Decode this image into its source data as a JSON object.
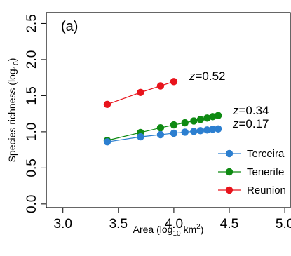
{
  "chart_data": {
    "type": "scatter",
    "panel_label": "(a)",
    "xlabel": {
      "pre": "Area (log",
      "sub": "10",
      "post": " km",
      "sup": "2",
      "end": ")"
    },
    "ylabel": {
      "pre": "Species richness (log",
      "sub": "10",
      "end": ")"
    },
    "xlim": [
      2.85,
      5.05
    ],
    "ylim": [
      -0.05,
      2.65
    ],
    "xticks": [
      3.0,
      3.5,
      4.0,
      4.5,
      5.0
    ],
    "xtick_labels": [
      "3.0",
      "3.5",
      "4.0",
      "4.5",
      "5.0"
    ],
    "yticks": [
      0.0,
      0.5,
      1.0,
      1.5,
      2.0,
      2.5
    ],
    "ytick_labels": [
      "0.0",
      "0.5",
      "1.0",
      "1.5",
      "2.0",
      "2.5"
    ],
    "legend_position": "bottom-right",
    "series": [
      {
        "name": "Reunion",
        "color": "#e8141c",
        "x": [
          3.4,
          3.7,
          3.88,
          4.0
        ],
        "y": [
          1.38,
          1.545,
          1.635,
          1.695
        ],
        "z_label": "z=0.52"
      },
      {
        "name": "Tenerife",
        "color": "#0e8a12",
        "x": [
          3.4,
          3.7,
          3.88,
          4.0,
          4.1,
          4.18,
          4.24,
          4.3,
          4.35,
          4.4
        ],
        "y": [
          0.88,
          0.99,
          1.055,
          1.095,
          1.125,
          1.15,
          1.17,
          1.19,
          1.21,
          1.225
        ],
        "z_label": "z=0.34"
      },
      {
        "name": "Terceira",
        "color": "#2c7fd0",
        "x": [
          3.4,
          3.7,
          3.88,
          4.0,
          4.1,
          4.18,
          4.24,
          4.3,
          4.35,
          4.4
        ],
        "y": [
          0.86,
          0.93,
          0.96,
          0.98,
          0.995,
          1.005,
          1.015,
          1.025,
          1.035,
          1.04
        ],
        "z_label": "z=0.17"
      }
    ],
    "legend": [
      "Terceira",
      "Tenerife",
      "Reunion"
    ]
  }
}
